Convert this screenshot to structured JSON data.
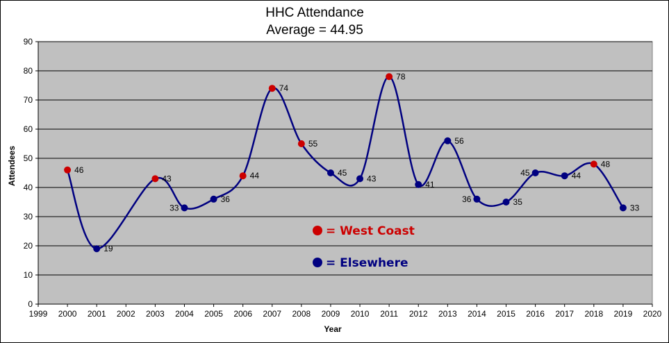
{
  "chart_data": {
    "type": "line",
    "title": "HHC Attendance",
    "subtitle": "Average = 44.95",
    "xlabel": "Year",
    "ylabel": "Attendees",
    "xlim": [
      1999,
      2020
    ],
    "ylim": [
      0,
      90
    ],
    "x_ticks": [
      1999,
      2000,
      2001,
      2002,
      2003,
      2004,
      2005,
      2006,
      2007,
      2008,
      2009,
      2010,
      2011,
      2012,
      2013,
      2014,
      2015,
      2016,
      2017,
      2018,
      2019,
      2020
    ],
    "y_ticks": [
      0,
      10,
      20,
      30,
      40,
      50,
      60,
      70,
      80,
      90
    ],
    "grid": "horizontal",
    "smoothed": true,
    "line_color": "#000080",
    "plot_background": "#c0c0c0",
    "points": [
      {
        "x": 2000,
        "y": 46,
        "group": "West Coast"
      },
      {
        "x": 2001,
        "y": 19,
        "group": "Elsewhere"
      },
      {
        "x": 2003,
        "y": 43,
        "group": "West Coast"
      },
      {
        "x": 2004,
        "y": 33,
        "group": "Elsewhere"
      },
      {
        "x": 2005,
        "y": 36,
        "group": "Elsewhere"
      },
      {
        "x": 2006,
        "y": 44,
        "group": "West Coast"
      },
      {
        "x": 2007,
        "y": 74,
        "group": "West Coast"
      },
      {
        "x": 2008,
        "y": 55,
        "group": "West Coast"
      },
      {
        "x": 2009,
        "y": 45,
        "group": "Elsewhere"
      },
      {
        "x": 2010,
        "y": 43,
        "group": "Elsewhere"
      },
      {
        "x": 2011,
        "y": 78,
        "group": "West Coast"
      },
      {
        "x": 2012,
        "y": 41,
        "group": "Elsewhere"
      },
      {
        "x": 2013,
        "y": 56,
        "group": "Elsewhere"
      },
      {
        "x": 2014,
        "y": 36,
        "group": "Elsewhere"
      },
      {
        "x": 2015,
        "y": 35,
        "group": "Elsewhere"
      },
      {
        "x": 2016,
        "y": 45,
        "group": "Elsewhere"
      },
      {
        "x": 2017,
        "y": 44,
        "group": "Elsewhere"
      },
      {
        "x": 2018,
        "y": 48,
        "group": "West Coast"
      },
      {
        "x": 2019,
        "y": 33,
        "group": "Elsewhere"
      }
    ],
    "legend": [
      {
        "label": "= West Coast",
        "color": "#cc0000"
      },
      {
        "label": "= Elsewhere",
        "color": "#000080"
      }
    ]
  }
}
